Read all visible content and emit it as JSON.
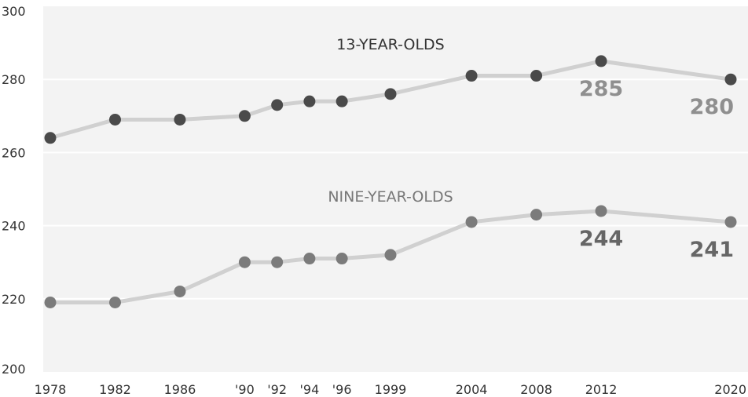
{
  "chart_data": {
    "type": "line",
    "x": [
      "1978",
      "1982",
      "1986",
      "'90",
      "'92",
      "'94",
      "'96",
      "1999",
      "2004",
      "2008",
      "2012",
      "2020"
    ],
    "x_years": [
      1978,
      1982,
      1986,
      1990,
      1992,
      1994,
      1996,
      1999,
      2004,
      2008,
      2012,
      2020
    ],
    "ylim": [
      200,
      300
    ],
    "yticks": [
      200,
      220,
      240,
      260,
      280,
      300
    ],
    "grid": true,
    "legend": "none",
    "series": [
      {
        "name": "13-YEAR-OLDS",
        "values": [
          264,
          269,
          269,
          270,
          273,
          274,
          274,
          276,
          281,
          281,
          285,
          280
        ],
        "labels": [
          {
            "index": 10,
            "text": "285"
          },
          {
            "index": 11,
            "text": "280"
          }
        ],
        "point_color": "#4a4a4a",
        "label_color": "#8f8f8f"
      },
      {
        "name": "NINE-YEAR-OLDS",
        "values": [
          219,
          219,
          222,
          230,
          230,
          231,
          231,
          232,
          241,
          243,
          244,
          241
        ],
        "labels": [
          {
            "index": 10,
            "text": "244"
          },
          {
            "index": 11,
            "text": "241"
          }
        ],
        "point_color": "#7b7b7b",
        "label_color": "#666666"
      }
    ],
    "colors": {
      "background": "#f3f3f3",
      "grid": "#ffffff",
      "line": "#d0d0d0",
      "title_13": "#333333",
      "title_9": "#777777"
    }
  }
}
